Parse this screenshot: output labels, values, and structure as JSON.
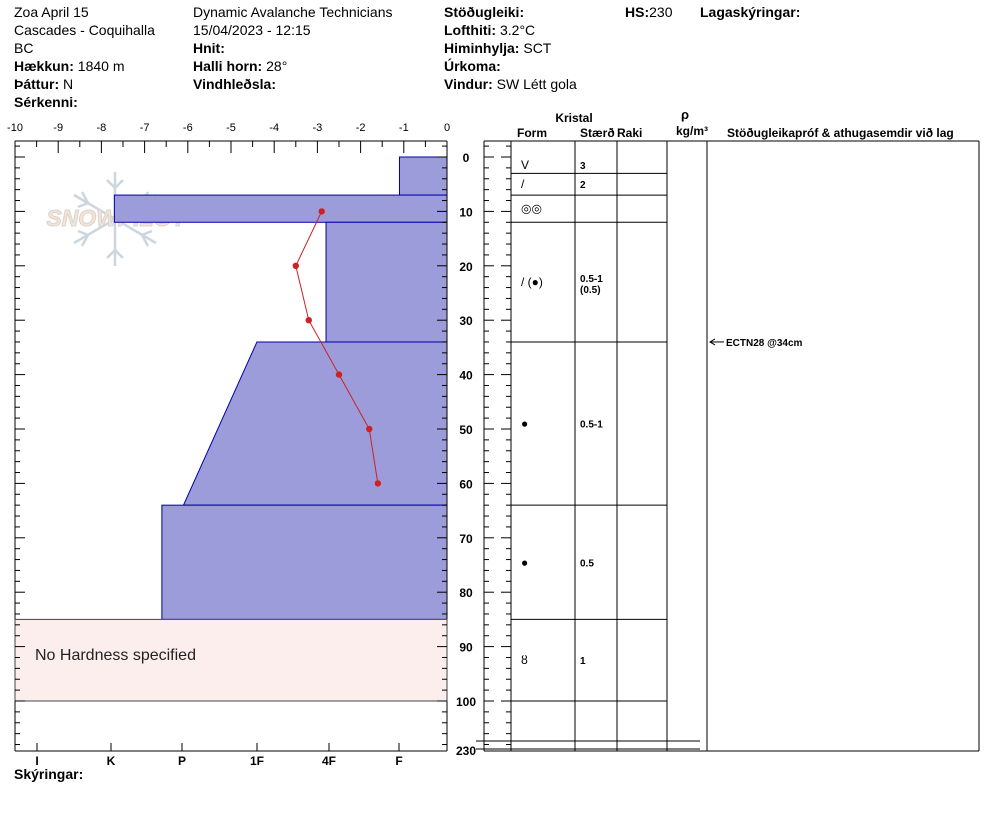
{
  "header": {
    "col1": [
      "Zoa April 15",
      "Cascades - Coquihalla",
      "BC"
    ],
    "elevation_label": "Hækkun:",
    "elevation_value": "1840 m",
    "aspect_label": "Þáttur:",
    "aspect_value": "N",
    "features_label": "Sérkenni:",
    "org": "Dynamic Avalanche Technicians",
    "datetime": "15/04/2023 - 12:15",
    "location_label": "Hnit:",
    "slope_label": "Halli horn:",
    "slope_value": "28°",
    "windload_label": "Vindhleðsla:",
    "stability_label": "Stöðugleiki:",
    "airtemp_label": "Lofthiti:",
    "airtemp_value": "3.2°C",
    "sky_label": "Himinhylja:",
    "sky_value": "SCT",
    "precip_label": "Úrkoma:",
    "wind_label": "Vindur:",
    "wind_value": "SW Létt gola",
    "hs_label": "HS:",
    "hs_value": "230",
    "layer_notes_label": "Lagaskýringar:"
  },
  "footer": {
    "notes_label": "Skýringar:"
  },
  "watermark": "SNOWPILOT",
  "no_hardness_text": "No Hardness specified",
  "table_headers": {
    "crystal": "Kristal",
    "form": "Form",
    "size": "Stærð",
    "moisture": "Raki",
    "rho": "ρ",
    "density_unit": "kg/m³",
    "tests": "Stöðugleikapróf & athugasemdir við lag"
  },
  "chart_data": {
    "type": "snow_profile",
    "temp_axis": {
      "ticks": [
        -10,
        -9,
        -8,
        -7,
        -6,
        -5,
        -4,
        -3,
        -2,
        -1,
        0
      ],
      "range": [
        -10,
        0
      ]
    },
    "depth_axis": {
      "ticks": [
        0,
        10,
        20,
        30,
        40,
        50,
        60,
        70,
        80,
        90,
        100
      ],
      "range": [
        -3,
        110
      ],
      "bottom_label": "230"
    },
    "hardness_axis": {
      "labels": [
        "I",
        "K",
        "P",
        "1F",
        "4F",
        "F"
      ]
    },
    "temperature_profile": [
      {
        "depth": 10,
        "temp": -2.9
      },
      {
        "depth": 20,
        "temp": -3.5
      },
      {
        "depth": 30,
        "temp": -3.2
      },
      {
        "depth": 40,
        "temp": -2.5
      },
      {
        "depth": 50,
        "temp": -1.8
      },
      {
        "depth": 60,
        "temp": -1.6
      }
    ],
    "hardness_profile": [
      {
        "top": 0,
        "bottom": 7,
        "value": 1.1
      },
      {
        "top": 7,
        "bottom": 12,
        "value": 7.7
      },
      {
        "top": 12,
        "bottom": 34,
        "value": 2.8
      },
      {
        "top": 34,
        "bottom": 64,
        "value_top": 4.4,
        "value_bottom": 6.1
      },
      {
        "top": 64,
        "bottom": 85,
        "value": 6.6
      }
    ],
    "no_hardness_zone": {
      "top": 85,
      "bottom": 100
    },
    "layers": [
      {
        "top": 0,
        "bottom": 3,
        "form": "V",
        "size": "3"
      },
      {
        "top": 3,
        "bottom": 7,
        "form": "/",
        "size": "2"
      },
      {
        "top": 7,
        "bottom": 12,
        "form": "◎◎",
        "size": ""
      },
      {
        "top": 12,
        "bottom": 34,
        "form": "/ (●)",
        "size": "0.5-1",
        "size2": "(0.5)"
      },
      {
        "top": 34,
        "bottom": 64,
        "form": "●",
        "size": "0.5-1"
      },
      {
        "top": 64,
        "bottom": 85,
        "form": "●",
        "size": "0.5"
      },
      {
        "top": 85,
        "bottom": 100,
        "form": "ȣ",
        "size": "1"
      }
    ],
    "tests": [
      {
        "depth": 34,
        "label": "ECTN28 @34cm"
      }
    ],
    "colors": {
      "hardness_fill": "#9c9cdb",
      "hardness_edge": "#0000aa",
      "temp_line": "#cc2222",
      "no_hardness_fill": "#fdeeee"
    }
  }
}
